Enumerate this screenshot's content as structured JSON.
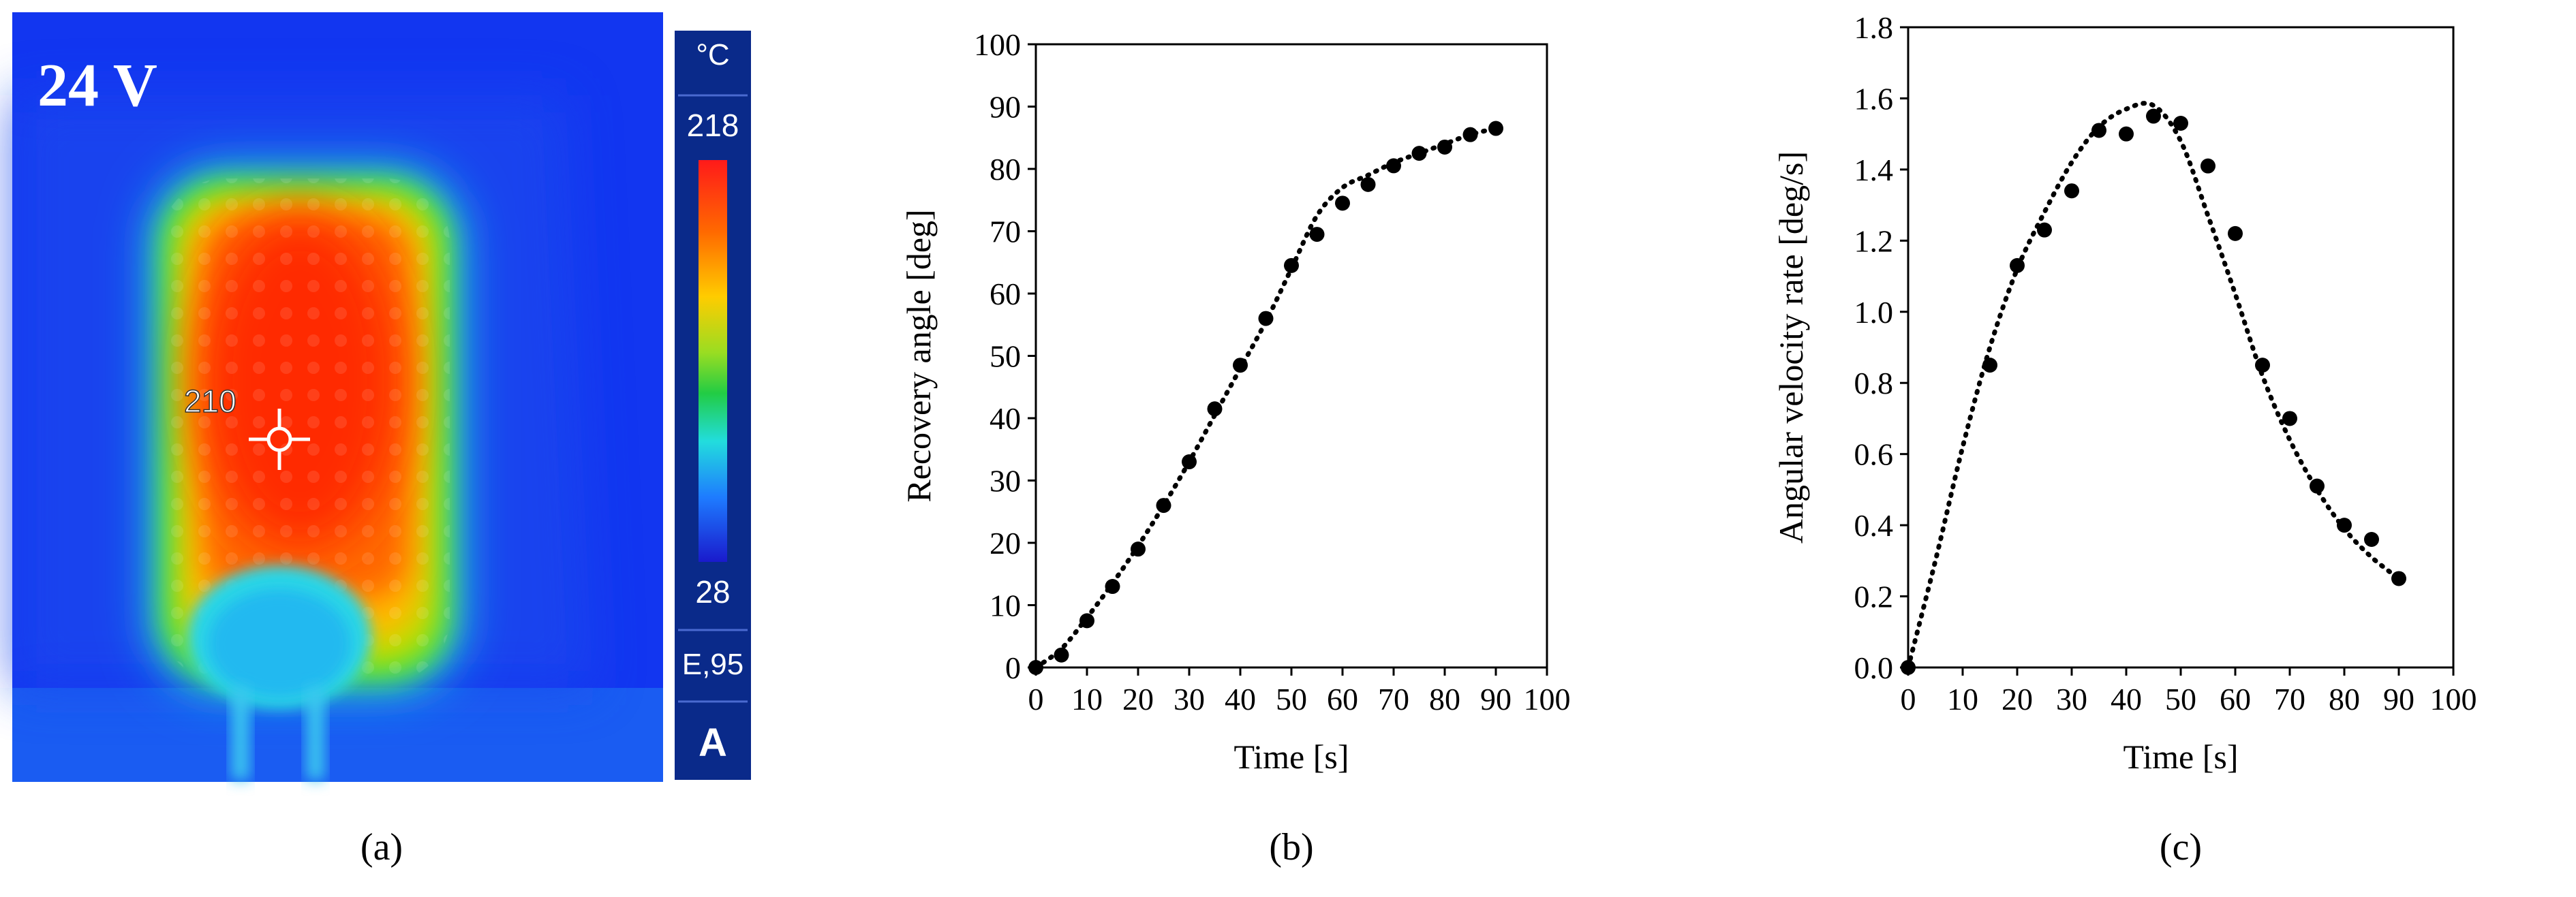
{
  "panel_a": {
    "voltage_label": "24 V",
    "spot_value": "210",
    "scale_unit": "°C",
    "scale_max": "218",
    "scale_min": "28",
    "emissivity": "E,95",
    "mode": "A",
    "caption": "(a)",
    "colors": {
      "background": "#1236f0",
      "hot": "#ff1a00",
      "bar_bg": "#0a2a8a"
    }
  },
  "chart_data": [
    {
      "type": "scatter",
      "caption": "(b)",
      "xlabel": "Time [s]",
      "ylabel": "Recovery angle [deg]",
      "xlim": [
        0,
        100
      ],
      "ylim": [
        0,
        100
      ],
      "xticks": [
        "0",
        "10",
        "20",
        "30",
        "40",
        "50",
        "60",
        "70",
        "80",
        "90",
        "100"
      ],
      "yticks": [
        "0",
        "10",
        "20",
        "30",
        "40",
        "50",
        "60",
        "70",
        "80",
        "90",
        "100"
      ],
      "grid": false,
      "series": [
        {
          "x": [
            0,
            5,
            10,
            15,
            20,
            25,
            30,
            35,
            40,
            45,
            50,
            55,
            60,
            65,
            70,
            75,
            80,
            85,
            90
          ],
          "y": [
            0,
            2,
            7.5,
            13,
            19,
            26,
            33,
            41.5,
            48.5,
            56,
            64.5,
            69.5,
            74.5,
            77.5,
            80.5,
            82.5,
            83.5,
            85.5,
            86.5
          ]
        }
      ],
      "trend": {
        "x": [
          0,
          5,
          10,
          15,
          20,
          25,
          30,
          35,
          40,
          45,
          50,
          55,
          60,
          65,
          70,
          75,
          80,
          85,
          90
        ],
        "y": [
          0,
          3,
          8,
          13.5,
          19.5,
          26,
          33,
          40.5,
          48,
          55.5,
          64,
          72.5,
          77,
          79,
          81,
          82.5,
          84,
          85.5,
          86.5
        ]
      }
    },
    {
      "type": "scatter",
      "caption": "(c)",
      "xlabel": "Time [s]",
      "ylabel": "Angular velocity rate [deg/s]",
      "xlim": [
        0,
        100
      ],
      "ylim": [
        0,
        1.8
      ],
      "xticks": [
        "0",
        "10",
        "20",
        "30",
        "40",
        "50",
        "60",
        "70",
        "80",
        "90",
        "100"
      ],
      "yticks": [
        "0.0",
        "0.2",
        "0.4",
        "0.6",
        "0.8",
        "1.0",
        "1.2",
        "1.4",
        "1.6",
        "1.8"
      ],
      "grid": false,
      "series": [
        {
          "x": [
            0,
            15,
            20,
            25,
            30,
            35,
            40,
            45,
            50,
            55,
            60,
            65,
            70,
            75,
            80,
            85,
            90
          ],
          "y": [
            0,
            0.85,
            1.13,
            1.23,
            1.34,
            1.51,
            1.5,
            1.55,
            1.53,
            1.41,
            1.22,
            0.85,
            0.7,
            0.51,
            0.4,
            0.36,
            0.25
          ]
        }
      ],
      "trend": {
        "x": [
          0,
          5,
          10,
          15,
          20,
          25,
          30,
          35,
          40,
          45,
          50,
          55,
          60,
          65,
          70,
          75,
          80,
          85,
          90
        ],
        "y": [
          0,
          0.3,
          0.62,
          0.9,
          1.12,
          1.28,
          1.42,
          1.52,
          1.57,
          1.58,
          1.48,
          1.27,
          1.05,
          0.82,
          0.64,
          0.5,
          0.39,
          0.31,
          0.25
        ]
      }
    }
  ]
}
